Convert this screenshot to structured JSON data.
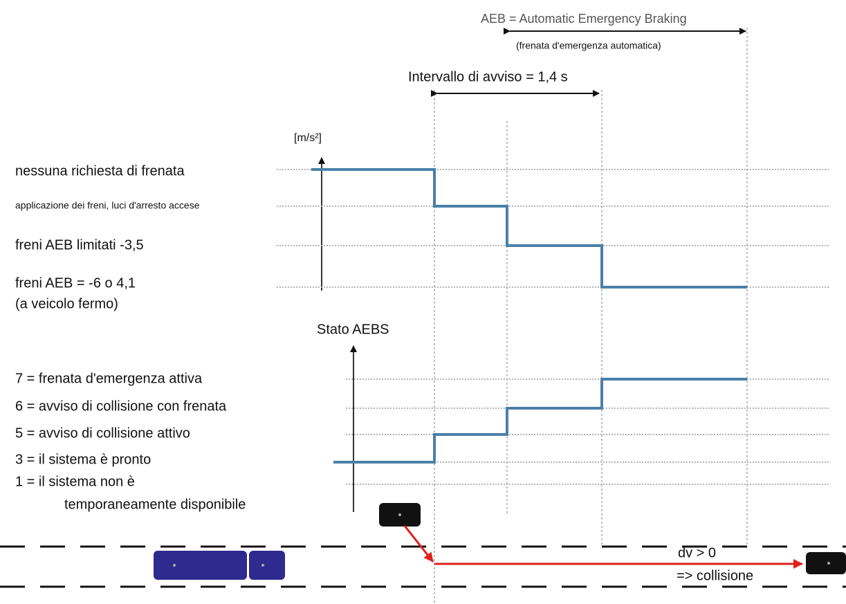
{
  "header": {
    "title": "AEB = Automatic Emergency Braking",
    "subtitle": "(frenata d'emergenza automatica)"
  },
  "interval_label": "Intervallo di avviso = 1,4 s",
  "upper_panel": {
    "axis_label": "[m/s²]",
    "levels": [
      [
        "nessuna richiesta di frenata"
      ],
      [
        "applicazione dei freni, luci d'arresto accese"
      ],
      [
        "freni AEB limitati -3,5"
      ],
      [
        "freni AEB = -6 o 4,1",
        "(a veicolo fermo)"
      ]
    ]
  },
  "lower_panel": {
    "axis_label": "Stato AEBS",
    "states": [
      [
        "7 = frenata d'emergenza attiva"
      ],
      [
        "6 = avviso di collisione con frenata"
      ],
      [
        "5 = avviso di collisione attivo"
      ],
      [
        "3 = il sistema è pronto"
      ],
      [
        "1 = il sistema non è",
        "temporaneamente disponibile"
      ]
    ]
  },
  "collision": {
    "condition": "dv > 0",
    "result": "=> collisione"
  }
}
